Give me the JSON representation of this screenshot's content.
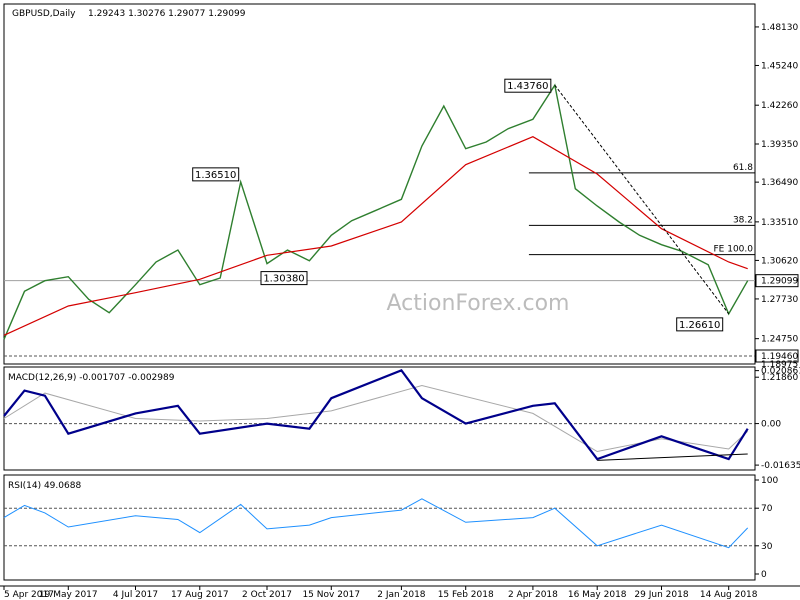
{
  "header": {
    "symbol": "GBPUSD,Daily",
    "ohlc": "1.29243 1.30276 1.29077 1.29099"
  },
  "watermark": "ActionForex.com",
  "colors": {
    "price": "#2f7f2f",
    "ema": "#d40000",
    "macd": "#00008b",
    "signal": "#a8a8a8",
    "rsi": "#1e90ff",
    "grid": "#000000"
  },
  "chart_data": [
    {
      "type": "line",
      "panel": "price",
      "ylim": [
        1.23,
        1.497
      ],
      "x_ticks": [
        "5 Apr 2017",
        "19 May 2017",
        "4 Jul 2017",
        "17 Aug 2017",
        "2 Oct 2017",
        "15 Nov 2017",
        "2 Jan 2018",
        "15 Feb 2018",
        "2 Apr 2018",
        "16 May 2018",
        "29 Jun 2018",
        "14 Aug 2018"
      ],
      "y_ticks": [
        1.4813,
        1.4524,
        1.4226,
        1.3935,
        1.3649,
        1.3351,
        1.3062,
        1.2773,
        1.2475,
        1.2186
      ],
      "last_price": "1.29099",
      "support_label": "1.19460",
      "extra_tick": "1.18975",
      "series": [
        {
          "name": "price",
          "x": [
            "5 Apr 2017",
            "19 Apr 2017",
            "3 May 2017",
            "19 May 2017",
            "2 Jun 2017",
            "16 Jun 2017",
            "4 Jul 2017",
            "18 Jul 2017",
            "2 Aug 2017",
            "17 Aug 2017",
            "31 Aug 2017",
            "14 Sep 2017",
            "2 Oct 2017",
            "16 Oct 2017",
            "31 Oct 2017",
            "15 Nov 2017",
            "29 Nov 2017",
            "14 Dec 2017",
            "2 Jan 2018",
            "16 Jan 2018",
            "31 Jan 2018",
            "15 Feb 2018",
            "1 Mar 2018",
            "16 Mar 2018",
            "2 Apr 2018",
            "17 Apr 2018",
            "1 May 2018",
            "16 May 2018",
            "31 May 2018",
            "14 Jun 2018",
            "29 Jun 2018",
            "13 Jul 2018",
            "31 Jul 2018",
            "14 Aug 2018",
            "27 Aug 2018"
          ],
          "values": [
            1.247,
            1.283,
            1.291,
            1.294,
            1.277,
            1.267,
            1.288,
            1.305,
            1.314,
            1.288,
            1.293,
            1.3651,
            1.3038,
            1.314,
            1.306,
            1.325,
            1.336,
            1.343,
            1.352,
            1.392,
            1.422,
            1.39,
            1.395,
            1.405,
            1.412,
            1.4376,
            1.36,
            1.347,
            1.335,
            1.325,
            1.318,
            1.313,
            1.303,
            1.2661,
            1.291
          ]
        },
        {
          "name": "ema",
          "x": [
            "5 Apr 2017",
            "19 May 2017",
            "4 Jul 2017",
            "17 Aug 2017",
            "2 Oct 2017",
            "15 Nov 2017",
            "2 Jan 2018",
            "15 Feb 2018",
            "2 Apr 2018",
            "16 May 2018",
            "29 Jun 2018",
            "14 Aug 2018",
            "27 Aug 2018"
          ],
          "values": [
            1.25,
            1.272,
            1.282,
            1.292,
            1.31,
            1.317,
            1.335,
            1.378,
            1.399,
            1.371,
            1.33,
            1.305,
            1.3
          ]
        }
      ],
      "annotations": [
        {
          "label": "1.36510",
          "x": "14 Sep 2017",
          "y": 1.3651
        },
        {
          "label": "1.30380",
          "x": "2 Oct 2017",
          "y": 1.3038
        },
        {
          "label": "1.43760",
          "x": "17 Apr 2018",
          "y": 1.4376
        },
        {
          "label": "1.26610",
          "x": "14 Aug 2018",
          "y": 1.2661
        }
      ],
      "fib_levels": [
        {
          "label": "61.8",
          "value": 1.3718
        },
        {
          "label": "38.2",
          "value": 1.3325
        },
        {
          "label": "FE 100.0",
          "value": 1.3105
        }
      ]
    },
    {
      "type": "line",
      "panel": "macd",
      "title": "MACD(12,26,9) -0.001707 -0.002989",
      "ylim": [
        -0.0175,
        0.0215
      ],
      "y_ticks": [
        0.020861,
        0.0,
        -0.016357
      ],
      "series": [
        {
          "name": "MACD",
          "x": [
            "5 Apr 2017",
            "19 Apr 2017",
            "3 May 2017",
            "19 May 2017",
            "4 Jul 2017",
            "2 Aug 2017",
            "17 Aug 2017",
            "2 Oct 2017",
            "31 Oct 2017",
            "15 Nov 2017",
            "2 Jan 2018",
            "16 Jan 2018",
            "15 Feb 2018",
            "2 Apr 2018",
            "17 Apr 2018",
            "16 May 2018",
            "29 Jun 2018",
            "14 Aug 2018",
            "27 Aug 2018"
          ],
          "values": [
            0.003,
            0.013,
            0.011,
            -0.004,
            0.004,
            0.007,
            -0.004,
            0.0,
            -0.002,
            0.01,
            0.021,
            0.01,
            0.0,
            0.007,
            0.008,
            -0.014,
            -0.005,
            -0.014,
            -0.002
          ]
        },
        {
          "name": "Signal",
          "x": [
            "5 Apr 2017",
            "3 May 2017",
            "4 Jul 2017",
            "17 Aug 2017",
            "2 Oct 2017",
            "15 Nov 2017",
            "16 Jan 2018",
            "2 Apr 2018",
            "16 May 2018",
            "29 Jun 2018",
            "14 Aug 2018",
            "27 Aug 2018"
          ],
          "values": [
            0.002,
            0.012,
            0.002,
            0.001,
            0.002,
            0.005,
            0.015,
            0.004,
            -0.011,
            -0.006,
            -0.01,
            -0.003
          ]
        }
      ]
    },
    {
      "type": "line",
      "panel": "rsi",
      "title": "RSI(14) 49.0688",
      "ylim": [
        0,
        100
      ],
      "y_ticks": [
        100,
        70,
        30,
        0
      ],
      "series": [
        {
          "name": "RSI",
          "x": [
            "5 Apr 2017",
            "19 Apr 2017",
            "3 May 2017",
            "19 May 2017",
            "4 Jul 2017",
            "2 Aug 2017",
            "17 Aug 2017",
            "14 Sep 2017",
            "2 Oct 2017",
            "31 Oct 2017",
            "15 Nov 2017",
            "2 Jan 2018",
            "16 Jan 2018",
            "15 Feb 2018",
            "2 Apr 2018",
            "17 Apr 2018",
            "16 May 2018",
            "29 Jun 2018",
            "14 Aug 2018",
            "27 Aug 2018"
          ],
          "values": [
            60,
            73,
            65,
            50,
            62,
            58,
            44,
            74,
            48,
            52,
            60,
            68,
            80,
            55,
            60,
            70,
            30,
            52,
            28,
            49
          ]
        }
      ]
    }
  ]
}
